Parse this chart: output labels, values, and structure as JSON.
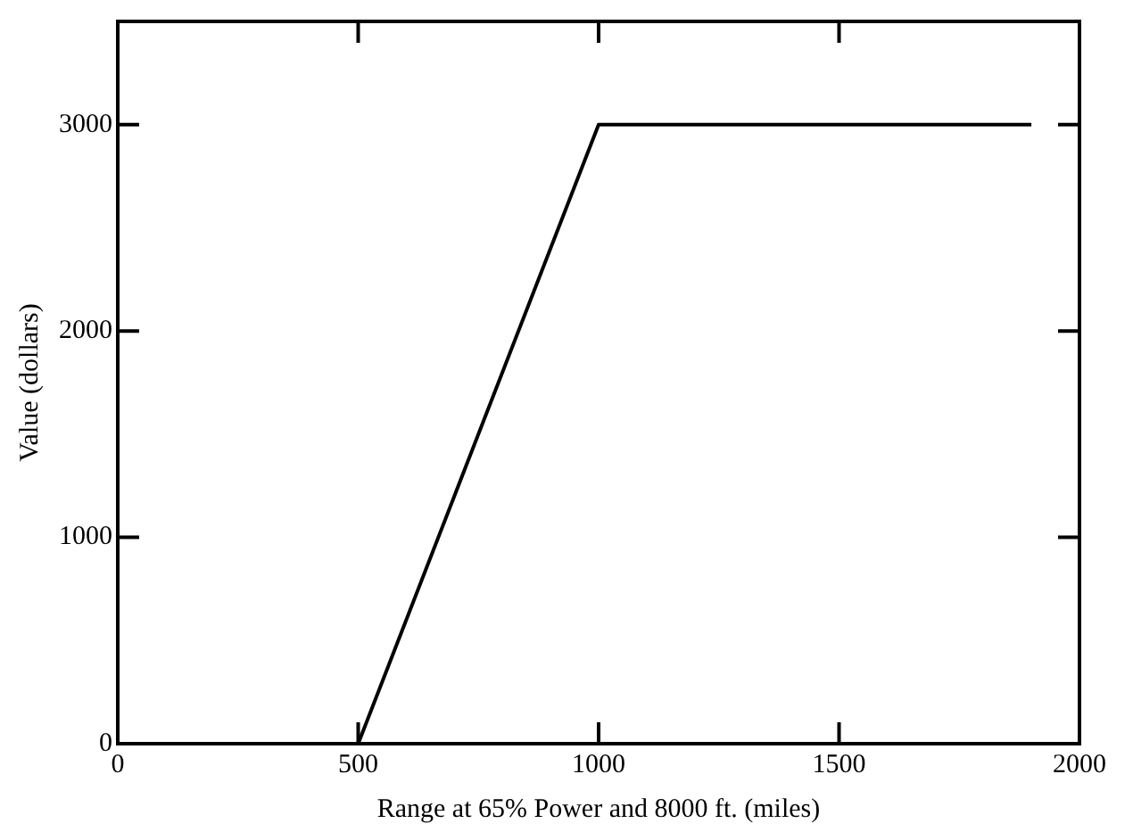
{
  "chart_data": {
    "type": "line",
    "xlabel": "Range at 65% Power and 8000 ft. (miles)",
    "ylabel": "Value (dollars)",
    "x": [
      500,
      1000,
      1900
    ],
    "series": [
      {
        "color": "#000000",
        "values": [
          0,
          3000,
          3000
        ]
      }
    ],
    "xlim": [
      0,
      2000
    ],
    "xticks": [
      0,
      500,
      1000,
      1500,
      2000
    ],
    "ylim": [
      0,
      3500
    ],
    "yticks": [
      0,
      1000,
      2000,
      3000
    ],
    "grid": false,
    "legend": false,
    "marker": "none",
    "line_style": "solid"
  }
}
